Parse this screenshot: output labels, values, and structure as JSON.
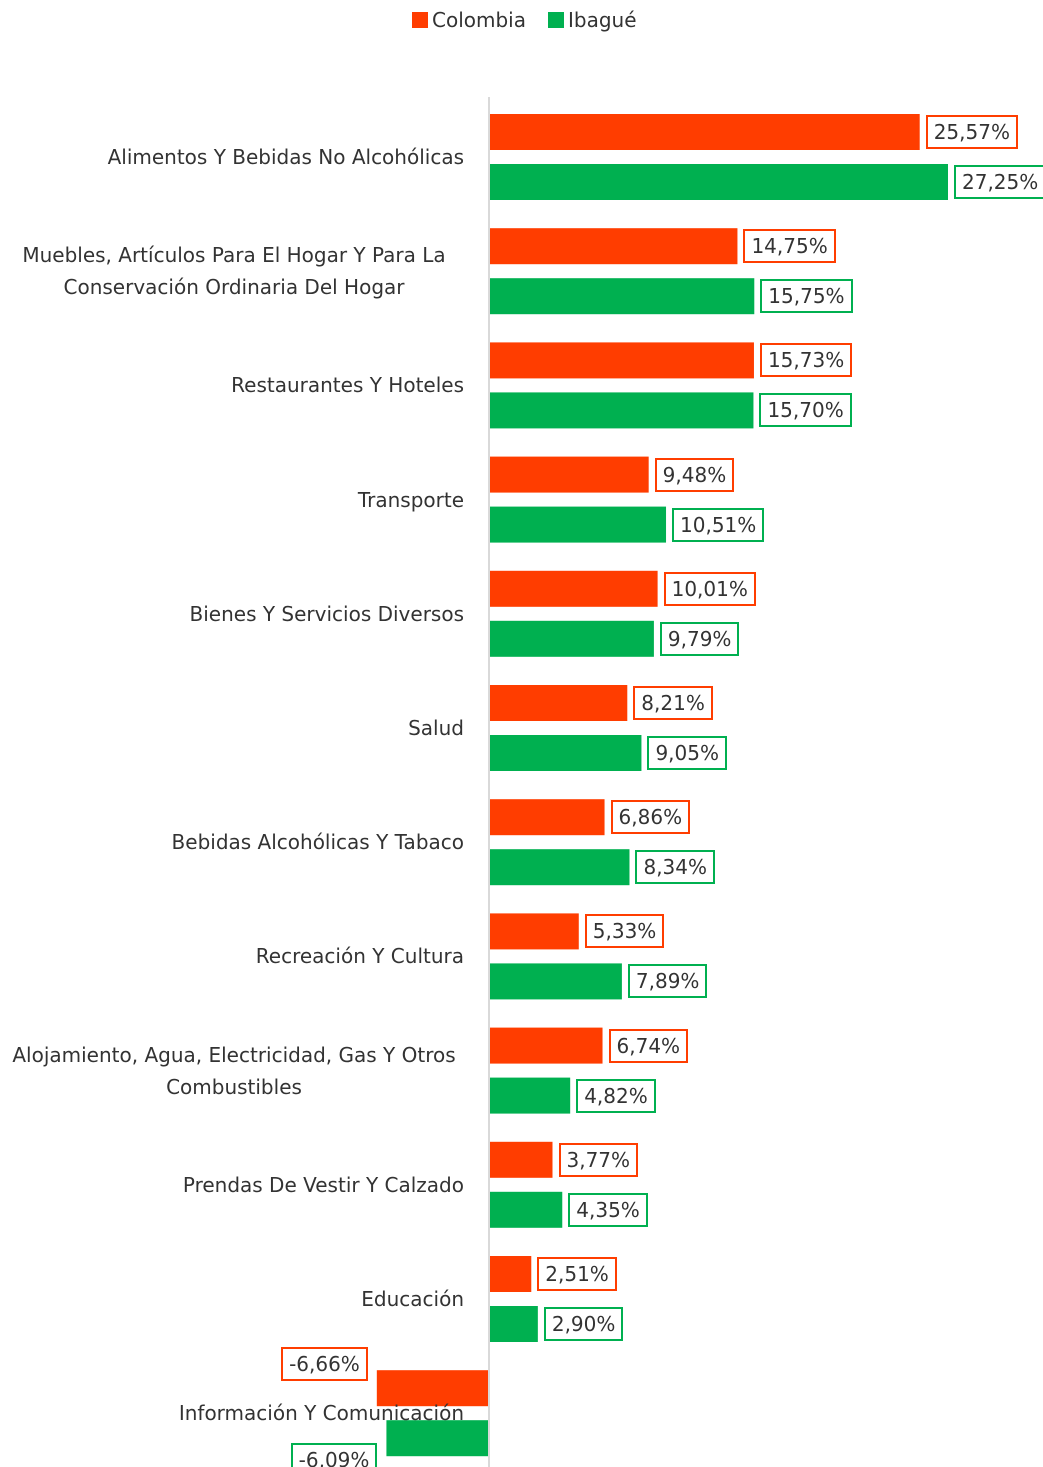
{
  "chart_data": {
    "type": "bar",
    "orientation": "horizontal",
    "categories": [
      "Alimentos Y Bebidas No Alcohólicas",
      "Muebles, Artículos Para El Hogar Y Para La Conservación Ordinaria Del Hogar",
      "Restaurantes Y Hoteles",
      "Transporte",
      "Bienes Y Servicios Diversos",
      "Salud",
      "Bebidas Alcohólicas Y Tabaco",
      "Recreación Y Cultura",
      "Alojamiento, Agua, Electricidad, Gas Y Otros Combustibles",
      "Prendas De Vestir Y Calzado",
      "Educación",
      "Información Y Comunicación"
    ],
    "series": [
      {
        "name": "Colombia",
        "color": "#ff3d00",
        "values": [
          25.57,
          14.75,
          15.73,
          9.48,
          10.01,
          8.21,
          6.86,
          5.33,
          6.74,
          3.77,
          2.51,
          -6.66
        ],
        "value_labels": [
          "25,57%",
          "14,75%",
          "15,73%",
          "9,48%",
          "10,01%",
          "8,21%",
          "6,86%",
          "5,33%",
          "6,74%",
          "3,77%",
          "2,51%",
          "-6,66%"
        ]
      },
      {
        "name": "Ibagué",
        "color": "#00b050",
        "values": [
          27.25,
          15.75,
          15.7,
          10.51,
          9.79,
          9.05,
          8.34,
          7.89,
          4.82,
          4.35,
          2.9,
          -6.09
        ],
        "value_labels": [
          "27,25%",
          "15,75%",
          "15,70%",
          "10,51%",
          "9,79%",
          "9,05%",
          "8,34%",
          "7,89%",
          "4,82%",
          "4,35%",
          "2,90%",
          "-6,09%"
        ]
      }
    ],
    "legend": "top"
  }
}
